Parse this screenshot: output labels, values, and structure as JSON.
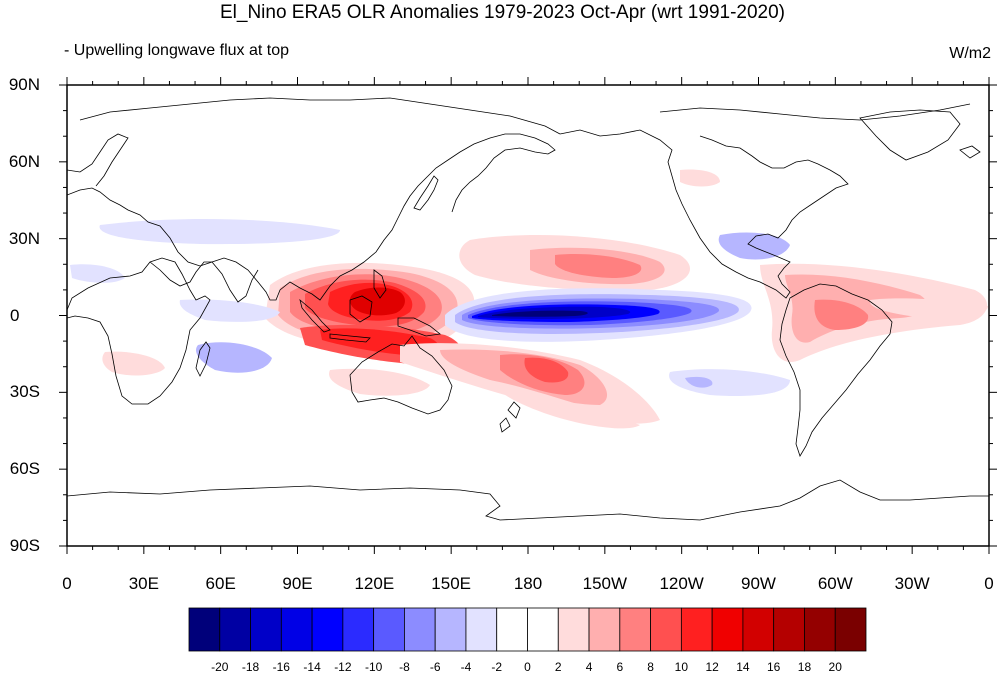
{
  "figure": {
    "title": "El_Nino ERA5 OLR Anomalies 1979-2023 Oct-Apr (wrt 1991-2020)",
    "subtitle": "- Upwelling longwave flux at top",
    "units": "W/m2"
  },
  "axes": {
    "y_ticks": [
      "90N",
      "60N",
      "30N",
      "0",
      "30S",
      "60S",
      "90S"
    ],
    "x_ticks": [
      "0",
      "30E",
      "60E",
      "90E",
      "120E",
      "150E",
      "180",
      "150W",
      "120W",
      "90W",
      "60W",
      "30W",
      "0"
    ]
  },
  "colorbar": {
    "labels": [
      "-20",
      "-18",
      "-16",
      "-14",
      "-12",
      "-10",
      "-8",
      "-6",
      "-4",
      "-2",
      "0",
      "2",
      "4",
      "6",
      "8",
      "10",
      "12",
      "14",
      "16",
      "18",
      "20"
    ],
    "colors": [
      "#00007a",
      "#0000a3",
      "#0000c8",
      "#0000e6",
      "#0000ff",
      "#2b2bff",
      "#5a5aff",
      "#8c8cff",
      "#b6b6ff",
      "#e2e2ff",
      "#ffffff",
      "#ffffff",
      "#ffdcdc",
      "#ffafaf",
      "#ff8080",
      "#ff5050",
      "#ff2020",
      "#f00000",
      "#d20000",
      "#b40000",
      "#940000",
      "#7a0000"
    ]
  },
  "map": {
    "projection": "cylindrical-equidistant",
    "center_longitude": 180,
    "field": "OLR anomaly composite"
  }
}
